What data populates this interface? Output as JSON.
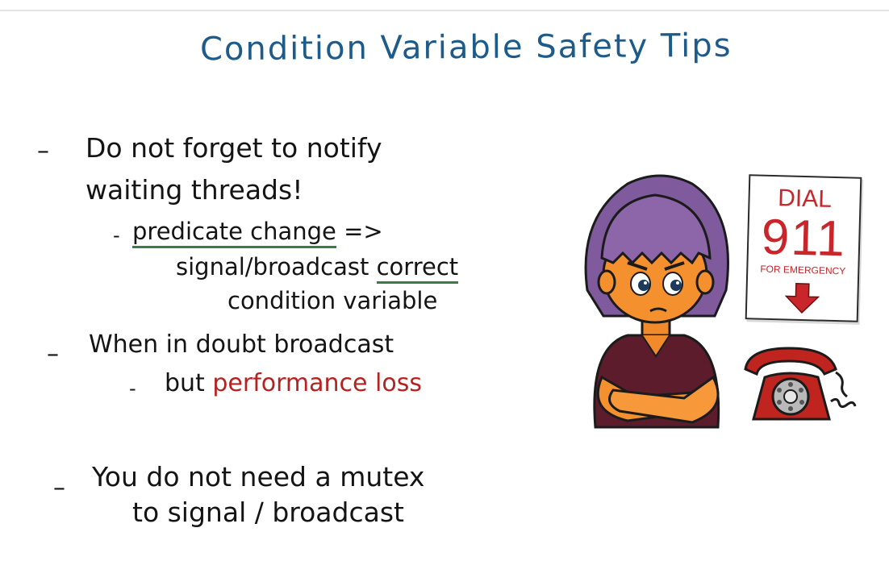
{
  "title": "Condition Variable Safety Tips",
  "tips": {
    "tip1_line1": "Do not forget to notify",
    "tip1_line2": "waiting threads!",
    "sub1_part1": "predicate change",
    "sub1_arrow": "=>",
    "sub1_line2_part1": "signal/broadcast",
    "sub1_line2_part2": "correct",
    "sub1_line3": "condition variable",
    "tip2": "When in doubt broadcast",
    "sub2_part1": "but",
    "sub2_part2": "performance loss",
    "tip3_line1": "You do not need a mutex",
    "tip3_line2": "to signal / broadcast"
  },
  "sign": {
    "line1": "DIAL",
    "line2": "911",
    "line3": "FOR EMERGENCY"
  },
  "colors": {
    "title": "#1d5b8a",
    "ink": "#141414",
    "highlight_red": "#b52222",
    "underline_green": "#3e7a45",
    "sign_red": "#c8262b"
  },
  "illustration": {
    "character": "girl-with-crossed-arms-icon",
    "phone": "rotary-phone-icon",
    "arrow": "down-arrow-icon"
  }
}
